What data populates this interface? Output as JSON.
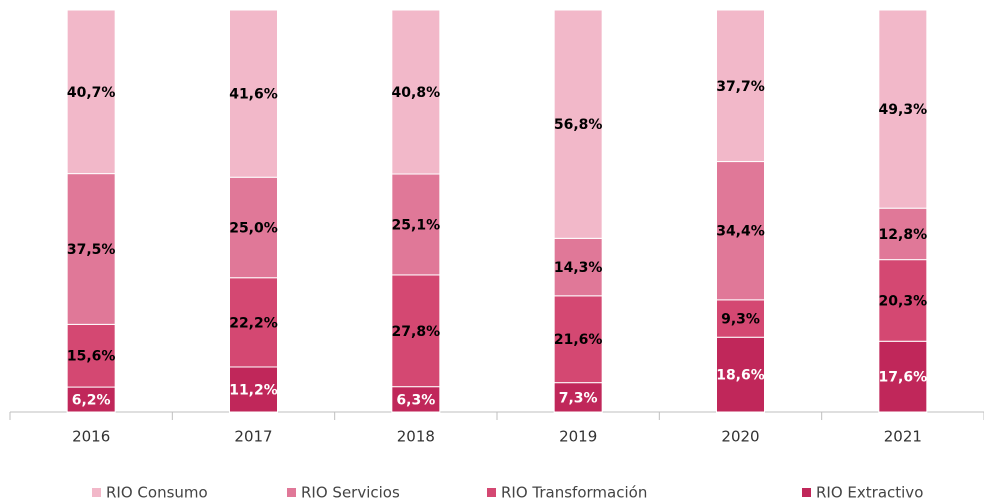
{
  "chart_data": {
    "type": "stacked_bar",
    "categories": [
      "2016",
      "2017",
      "2018",
      "2019",
      "2020",
      "2021"
    ],
    "series": [
      {
        "name": "RIO Consumo",
        "color": "#f2b8c9",
        "label_color": "#000000",
        "values": [
          40.7,
          41.6,
          40.8,
          56.8,
          37.7,
          49.3
        ],
        "value_labels": [
          "40,7%",
          "41,6%",
          "40,8%",
          "56,8%",
          "37,7%",
          "49,3%"
        ]
      },
      {
        "name": "RIO Servicios",
        "color": "#e07898",
        "label_color": "#000000",
        "values": [
          37.5,
          25.0,
          25.1,
          14.3,
          34.4,
          12.8
        ],
        "value_labels": [
          "37,5%",
          "25,0%",
          "25,1%",
          "14,3%",
          "34,4%",
          "12,8%"
        ]
      },
      {
        "name": "RIO Transformación",
        "color": "#d44872",
        "label_color": "#000000",
        "values": [
          15.6,
          22.2,
          27.8,
          21.6,
          9.3,
          20.3
        ],
        "value_labels": [
          "15,6%",
          "22,2%",
          "27,8%",
          "21,6%",
          "9,3%",
          "20,3%"
        ]
      },
      {
        "name": "RIO Extractivo",
        "color": "#c0275a",
        "label_color": "#ffffff",
        "values": [
          6.2,
          11.2,
          6.3,
          7.3,
          18.6,
          17.6
        ],
        "value_labels": [
          "6,2%",
          "11,2%",
          "6,3%",
          "7,3%",
          "18,6%",
          "17,6%"
        ]
      }
    ],
    "ylim": [
      0,
      100
    ]
  }
}
